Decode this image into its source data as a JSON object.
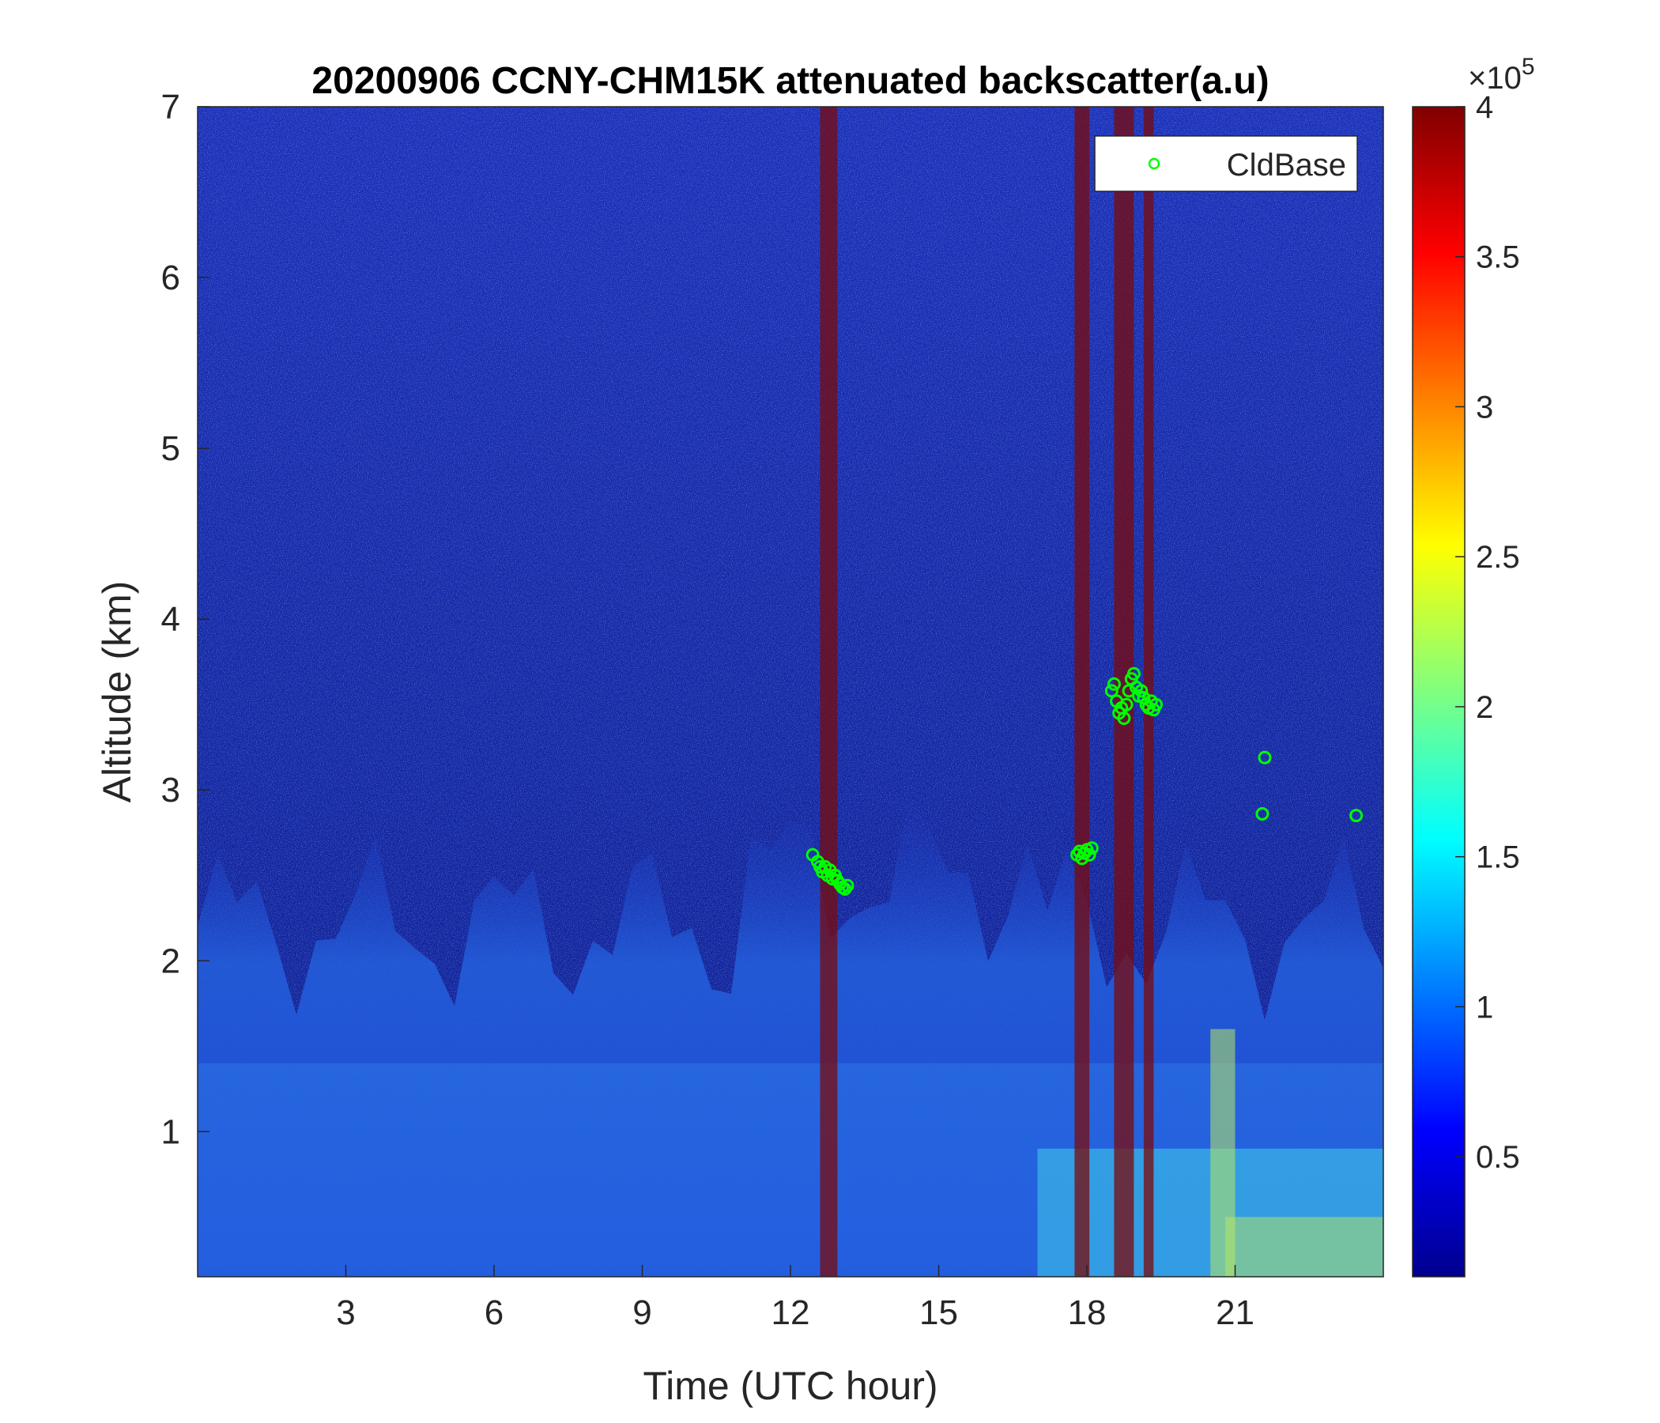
{
  "chart_data": {
    "type": "heatmap",
    "title": "20200906 CCNY-CHM15K attenuated backscatter(a.u)",
    "xlabel": "Time (UTC hour)",
    "ylabel": "Altitude (km)",
    "xlim": [
      0,
      24
    ],
    "ylim": [
      0.15,
      7
    ],
    "x_ticks": [
      3,
      6,
      9,
      12,
      15,
      18,
      21
    ],
    "x_tick_labels": [
      "3",
      "6",
      "9",
      "12",
      "15",
      "18",
      "21"
    ],
    "y_ticks": [
      1,
      2,
      3,
      4,
      5,
      6,
      7
    ],
    "y_tick_labels": [
      "1",
      "2",
      "3",
      "4",
      "5",
      "6",
      "7"
    ],
    "colorbar": {
      "colormap": "jet",
      "range": [
        10000,
        400000
      ],
      "ticks": [
        50000,
        100000,
        150000,
        200000,
        250000,
        300000,
        350000,
        400000
      ],
      "tick_labels": [
        "0.5",
        "1",
        "1.5",
        "2",
        "2.5",
        "3",
        "3.5",
        "4"
      ],
      "exponent_base": "×10",
      "exponent_power": "5"
    },
    "legend": {
      "placement": "top-right",
      "entries": [
        {
          "name": "CldBase",
          "marker": "circle",
          "color": "#00ff00"
        }
      ]
    },
    "series": [
      {
        "name": "CldBase",
        "type": "scatter",
        "color": "#00ff00",
        "points": [
          [
            12.45,
            2.62
          ],
          [
            12.55,
            2.58
          ],
          [
            12.6,
            2.55
          ],
          [
            12.65,
            2.52
          ],
          [
            12.7,
            2.55
          ],
          [
            12.75,
            2.5
          ],
          [
            12.8,
            2.53
          ],
          [
            12.85,
            2.48
          ],
          [
            12.9,
            2.5
          ],
          [
            12.95,
            2.47
          ],
          [
            13.0,
            2.45
          ],
          [
            13.05,
            2.43
          ],
          [
            13.1,
            2.42
          ],
          [
            13.15,
            2.44
          ],
          [
            17.8,
            2.62
          ],
          [
            17.85,
            2.64
          ],
          [
            17.9,
            2.6
          ],
          [
            17.95,
            2.63
          ],
          [
            18.0,
            2.65
          ],
          [
            18.05,
            2.62
          ],
          [
            18.1,
            2.66
          ],
          [
            18.5,
            3.58
          ],
          [
            18.55,
            3.62
          ],
          [
            18.6,
            3.52
          ],
          [
            18.65,
            3.45
          ],
          [
            18.7,
            3.48
          ],
          [
            18.75,
            3.42
          ],
          [
            18.8,
            3.5
          ],
          [
            18.85,
            3.58
          ],
          [
            18.9,
            3.65
          ],
          [
            18.95,
            3.68
          ],
          [
            19.0,
            3.6
          ],
          [
            19.05,
            3.55
          ],
          [
            19.1,
            3.58
          ],
          [
            19.15,
            3.54
          ],
          [
            19.2,
            3.5
          ],
          [
            19.25,
            3.48
          ],
          [
            19.3,
            3.52
          ],
          [
            19.35,
            3.47
          ],
          [
            19.4,
            3.5
          ],
          [
            21.6,
            3.19
          ],
          [
            21.55,
            2.86
          ],
          [
            23.45,
            2.85
          ]
        ]
      }
    ],
    "columns": [
      {
        "x0": 12.6,
        "x1": 12.95,
        "color": "#7a0b0b"
      },
      {
        "x0": 17.75,
        "x1": 18.05,
        "color": "#7a0b0b"
      },
      {
        "x0": 18.55,
        "x1": 18.95,
        "color": "#7a0b0b"
      },
      {
        "x0": 19.15,
        "x1": 19.35,
        "color": "#7a0b0b"
      }
    ],
    "colors": {
      "background_dark": "#0a1c8a",
      "upper_noise": "#1a34c0",
      "boundary_layer": "#2f7de8",
      "aerosol_light": "#3fd0e8",
      "surface_bright": "#b8e860",
      "cloud_marker": "#00ff00"
    }
  }
}
